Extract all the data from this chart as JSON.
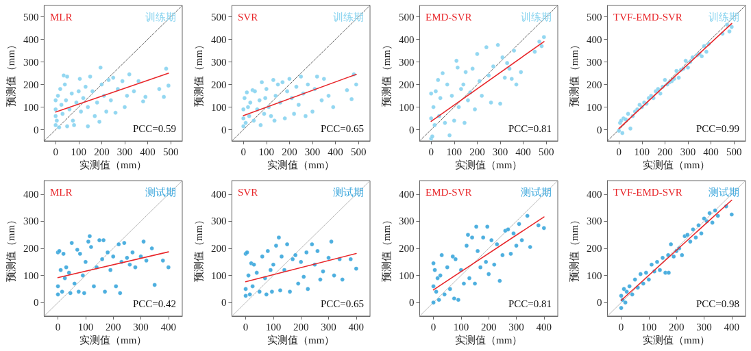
{
  "chart_data": [
    {
      "type": "scatter",
      "title": "MLR",
      "subtitle": "训练期",
      "annotations": [
        "PCC=0.59"
      ],
      "xlabel": "实测值（mm）",
      "ylabel": "预测值（mm）",
      "xlim": [
        -50,
        550
      ],
      "ylim": [
        -50,
        550
      ],
      "xticks": [
        0,
        100,
        200,
        300,
        400,
        500
      ],
      "yticks": [
        0,
        100,
        200,
        300,
        400,
        500
      ],
      "series": [
        {
          "marker": "circle",
          "color": "#87d3ef",
          "x": [
            0,
            0,
            0,
            0,
            5,
            10,
            15,
            20,
            25,
            30,
            35,
            40,
            45,
            50,
            50,
            60,
            70,
            75,
            80,
            90,
            100,
            105,
            110,
            120,
            130,
            140,
            140,
            150,
            160,
            170,
            180,
            190,
            195,
            200,
            210,
            220,
            230,
            240,
            250,
            260,
            270,
            290,
            300,
            310,
            320,
            340,
            360,
            380,
            390,
            450,
            470,
            480,
            490
          ],
          "values": [
            130,
            90,
            60,
            20,
            40,
            150,
            10,
            180,
            110,
            70,
            240,
            200,
            130,
            235,
            15,
            90,
            160,
            40,
            20,
            120,
            170,
            225,
            80,
            140,
            190,
            15,
            100,
            235,
            170,
            60,
            120,
            35,
            275,
            200,
            150,
            80,
            220,
            130,
            230,
            75,
            180,
            215,
            100,
            150,
            245,
            170,
            215,
            125,
            145,
            180,
            145,
            270,
            195
          ]
        },
        {
          "type": "line",
          "color": "#e8262a",
          "line_style": "solid",
          "x": [
            0,
            490
          ],
          "values": [
            78,
            250
          ]
        },
        {
          "type": "line",
          "color": "#555555",
          "line_style": "dashed",
          "x": [
            -50,
            550
          ],
          "values": [
            -50,
            550
          ]
        }
      ]
    },
    {
      "type": "scatter",
      "title": "SVR",
      "subtitle": "训练期",
      "annotations": [
        "PCC=0.65"
      ],
      "xlabel": "实测值（mm）",
      "ylabel": "预测值（mm）",
      "xlim": [
        -50,
        550
      ],
      "ylim": [
        -50,
        550
      ],
      "xticks": [
        0,
        100,
        200,
        300,
        400,
        500
      ],
      "yticks": [
        0,
        100,
        200,
        300,
        400,
        500
      ],
      "series": [
        {
          "marker": "circle",
          "color": "#87d3ef",
          "x": [
            0,
            0,
            0,
            5,
            10,
            15,
            20,
            25,
            30,
            40,
            45,
            50,
            60,
            70,
            75,
            80,
            90,
            95,
            100,
            110,
            120,
            130,
            135,
            140,
            150,
            160,
            170,
            180,
            190,
            200,
            210,
            220,
            230,
            240,
            250,
            260,
            270,
            280,
            300,
            310,
            320,
            340,
            350,
            370,
            390,
            450,
            470,
            480,
            490
          ],
          "values": [
            90,
            50,
            15,
            140,
            30,
            165,
            100,
            60,
            120,
            175,
            40,
            170,
            90,
            130,
            20,
            210,
            70,
            140,
            180,
            100,
            60,
            220,
            40,
            150,
            200,
            120,
            210,
            50,
            170,
            225,
            140,
            70,
            190,
            110,
            235,
            160,
            60,
            200,
            80,
            180,
            235,
            130,
            225,
            150,
            100,
            175,
            135,
            245,
            200
          ]
        },
        {
          "type": "line",
          "color": "#e8262a",
          "line_style": "solid",
          "x": [
            0,
            490
          ],
          "values": [
            62,
            245
          ]
        },
        {
          "type": "line",
          "color": "#555555",
          "line_style": "dashed",
          "x": [
            -50,
            550
          ],
          "values": [
            -50,
            550
          ]
        }
      ]
    },
    {
      "type": "scatter",
      "title": "EMD-SVR",
      "subtitle": "训练期",
      "annotations": [
        "PCC=0.81"
      ],
      "xlabel": "实测值（mm）",
      "ylabel": "预测值（mm）",
      "xlim": [
        -50,
        550
      ],
      "ylim": [
        -50,
        550
      ],
      "xticks": [
        0,
        100,
        200,
        300,
        400,
        500
      ],
      "yticks": [
        0,
        100,
        200,
        300,
        400,
        500
      ],
      "series": [
        {
          "marker": "circle",
          "color": "#87d3ef",
          "x": [
            0,
            0,
            0,
            5,
            10,
            15,
            20,
            30,
            35,
            40,
            50,
            60,
            70,
            80,
            90,
            100,
            110,
            115,
            120,
            130,
            140,
            145,
            150,
            160,
            170,
            180,
            190,
            200,
            210,
            220,
            240,
            250,
            260,
            270,
            290,
            300,
            310,
            320,
            330,
            340,
            350,
            360,
            370,
            390,
            450,
            470,
            480,
            490
          ],
          "values": [
            160,
            50,
            -40,
            -30,
            100,
            20,
            170,
            220,
            60,
            140,
            250,
            30,
            200,
            -25,
            150,
            40,
            305,
            275,
            100,
            180,
            200,
            30,
            255,
            130,
            165,
            270,
            90,
            335,
            215,
            150,
            365,
            240,
            120,
            280,
            375,
            115,
            320,
            230,
            295,
            270,
            225,
            350,
            200,
            255,
            345,
            390,
            370,
            410
          ]
        },
        {
          "type": "line",
          "color": "#e8262a",
          "line_style": "solid",
          "x": [
            0,
            490
          ],
          "values": [
            37,
            390
          ]
        },
        {
          "type": "line",
          "color": "#555555",
          "line_style": "dashed",
          "x": [
            -50,
            550
          ],
          "values": [
            -50,
            550
          ]
        }
      ]
    },
    {
      "type": "scatter",
      "title": "TVF-EMD-SVR",
      "subtitle": "训练期",
      "annotations": [
        "PCC=0.99"
      ],
      "xlabel": "实测值（mm）",
      "ylabel": "预测值（mm）",
      "xlim": [
        -50,
        550
      ],
      "ylim": [
        -50,
        550
      ],
      "xticks": [
        0,
        100,
        200,
        300,
        400,
        500
      ],
      "yticks": [
        0,
        100,
        200,
        300,
        400,
        500
      ],
      "series": [
        {
          "marker": "circle",
          "color": "#87d3ef",
          "x": [
            0,
            5,
            10,
            15,
            20,
            30,
            40,
            50,
            60,
            70,
            80,
            90,
            100,
            110,
            120,
            130,
            140,
            150,
            160,
            170,
            180,
            190,
            200,
            210,
            220,
            230,
            240,
            250,
            260,
            270,
            280,
            290,
            300,
            310,
            320,
            340,
            350,
            360,
            370,
            380,
            390,
            450,
            470,
            480,
            490
          ],
          "values": [
            -5,
            30,
            40,
            -15,
            50,
            45,
            70,
            5,
            60,
            80,
            90,
            110,
            100,
            120,
            115,
            140,
            150,
            140,
            170,
            180,
            160,
            190,
            220,
            200,
            210,
            215,
            225,
            260,
            230,
            265,
            270,
            305,
            275,
            300,
            320,
            330,
            335,
            325,
            370,
            345,
            380,
            425,
            465,
            435,
            455
          ]
        },
        {
          "type": "line",
          "color": "#e8262a",
          "line_style": "solid",
          "x": [
            0,
            490
          ],
          "values": [
            5,
            470
          ]
        },
        {
          "type": "line",
          "color": "#555555",
          "line_style": "dashed",
          "x": [
            -50,
            550
          ],
          "values": [
            -50,
            550
          ]
        }
      ]
    },
    {
      "type": "scatter",
      "title": "MLR",
      "subtitle": "测试期",
      "annotations": [
        "PCC=0.42"
      ],
      "xlabel": "实测值（mm）",
      "ylabel": "预测值（mm）",
      "xlim": [
        -50,
        450
      ],
      "ylim": [
        -50,
        450
      ],
      "xticks": [
        0,
        100,
        200,
        300,
        400
      ],
      "yticks": [
        0,
        100,
        200,
        300,
        400
      ],
      "series": [
        {
          "marker": "circle",
          "color": "#3aa6dc",
          "x": [
            0,
            0,
            0,
            5,
            10,
            15,
            20,
            25,
            30,
            40,
            45,
            50,
            60,
            70,
            75,
            80,
            90,
            95,
            100,
            110,
            115,
            120,
            130,
            140,
            150,
            160,
            165,
            170,
            180,
            190,
            200,
            210,
            220,
            225,
            230,
            240,
            250,
            260,
            270,
            280,
            300,
            310,
            320,
            340,
            350,
            380,
            400
          ],
          "values": [
            185,
            60,
            30,
            190,
            120,
            40,
            180,
            90,
            130,
            110,
            35,
            220,
            70,
            195,
            40,
            180,
            100,
            35,
            150,
            225,
            245,
            205,
            60,
            130,
            230,
            160,
            230,
            40,
            185,
            120,
            170,
            60,
            215,
            35,
            150,
            220,
            165,
            140,
            185,
            130,
            170,
            225,
            155,
            200,
            65,
            155,
            130
          ]
        },
        {
          "type": "line",
          "color": "#e8262a",
          "line_style": "solid",
          "x": [
            0,
            400
          ],
          "values": [
            92,
            187
          ]
        },
        {
          "type": "line",
          "color": "#aaaaaa",
          "line_style": "dotted",
          "x": [
            -50,
            450
          ],
          "values": [
            -50,
            450
          ]
        }
      ]
    },
    {
      "type": "scatter",
      "title": "SVR",
      "subtitle": "测试期",
      "annotations": [
        "PCC=0.65"
      ],
      "xlabel": "实测值（mm）",
      "ylabel": "预测值（mm）",
      "xlim": [
        -50,
        450
      ],
      "ylim": [
        -50,
        450
      ],
      "xticks": [
        0,
        100,
        200,
        300,
        400
      ],
      "yticks": [
        0,
        100,
        200,
        300,
        400
      ],
      "series": [
        {
          "marker": "circle",
          "color": "#3aa6dc",
          "x": [
            0,
            0,
            0,
            5,
            10,
            15,
            20,
            25,
            30,
            40,
            50,
            60,
            70,
            75,
            80,
            90,
            95,
            100,
            110,
            120,
            125,
            130,
            140,
            150,
            160,
            170,
            180,
            190,
            200,
            210,
            220,
            225,
            240,
            250,
            260,
            270,
            280,
            300,
            310,
            320,
            340,
            350,
            380,
            400
          ],
          "values": [
            180,
            50,
            25,
            185,
            100,
            30,
            145,
            60,
            140,
            110,
            40,
            170,
            90,
            30,
            190,
            120,
            40,
            140,
            210,
            240,
            45,
            170,
            120,
            215,
            40,
            160,
            175,
            70,
            150,
            95,
            185,
            50,
            215,
            140,
            190,
            85,
            115,
            165,
            225,
            100,
            160,
            85,
            160,
            125
          ]
        },
        {
          "type": "line",
          "color": "#e8262a",
          "line_style": "solid",
          "x": [
            0,
            400
          ],
          "values": [
            77,
            181
          ]
        },
        {
          "type": "line",
          "color": "#aaaaaa",
          "line_style": "dotted",
          "x": [
            -50,
            450
          ],
          "values": [
            -50,
            450
          ]
        }
      ]
    },
    {
      "type": "scatter",
      "title": "EMD-SVR",
      "subtitle": "测试期",
      "annotations": [
        "PCC=0.81"
      ],
      "xlabel": "实测值（mm）",
      "ylabel": "预测值（mm）",
      "xlim": [
        -50,
        450
      ],
      "ylim": [
        -50,
        450
      ],
      "xticks": [
        0,
        100,
        200,
        300,
        400
      ],
      "yticks": [
        0,
        100,
        200,
        300,
        400
      ],
      "series": [
        {
          "marker": "circle",
          "color": "#3aa6dc",
          "x": [
            0,
            0,
            0,
            5,
            10,
            15,
            20,
            25,
            30,
            40,
            50,
            60,
            70,
            75,
            80,
            90,
            100,
            110,
            120,
            125,
            130,
            140,
            150,
            155,
            160,
            170,
            180,
            190,
            195,
            200,
            210,
            220,
            230,
            240,
            250,
            260,
            270,
            280,
            290,
            300,
            310,
            320,
            340,
            350,
            380,
            400
          ],
          "values": [
            145,
            60,
            0,
            120,
            40,
            90,
            10,
            100,
            175,
            30,
            130,
            50,
            170,
            15,
            160,
            10,
            120,
            70,
            210,
            250,
            90,
            240,
            70,
            280,
            190,
            130,
            240,
            150,
            280,
            105,
            230,
            140,
            215,
            80,
            175,
            265,
            270,
            180,
            255,
            210,
            290,
            230,
            320,
            205,
            285,
            275
          ]
        },
        {
          "type": "line",
          "color": "#e8262a",
          "line_style": "solid",
          "x": [
            0,
            400
          ],
          "values": [
            47,
            316
          ]
        },
        {
          "type": "line",
          "color": "#aaaaaa",
          "line_style": "dotted",
          "x": [
            -50,
            450
          ],
          "values": [
            -50,
            450
          ]
        }
      ]
    },
    {
      "type": "scatter",
      "title": "TVF-EMD-SVR",
      "subtitle": "测试期",
      "annotations": [
        "PCC=0.98"
      ],
      "xlabel": "实测值（mm）",
      "ylabel": "预测值（mm）",
      "xlim": [
        -50,
        450
      ],
      "ylim": [
        -50,
        450
      ],
      "xticks": [
        0,
        100,
        200,
        300,
        400
      ],
      "yticks": [
        0,
        100,
        200,
        300,
        400
      ],
      "series": [
        {
          "marker": "circle",
          "color": "#3aa6dc",
          "x": [
            0,
            0,
            5,
            10,
            15,
            20,
            30,
            40,
            50,
            60,
            70,
            80,
            90,
            100,
            110,
            120,
            130,
            140,
            150,
            160,
            172,
            170,
            180,
            190,
            200,
            210,
            220,
            230,
            240,
            250,
            260,
            270,
            280,
            290,
            300,
            310,
            320,
            330,
            340,
            350,
            380,
            400
          ],
          "values": [
            -20,
            25,
            10,
            50,
            0,
            40,
            60,
            30,
            85,
            55,
            105,
            70,
            110,
            85,
            140,
            115,
            150,
            120,
            165,
            110,
            110,
            175,
            215,
            170,
            190,
            200,
            175,
            245,
            250,
            225,
            270,
            240,
            285,
            255,
            310,
            300,
            330,
            295,
            340,
            320,
            355,
            325
          ]
        },
        {
          "type": "line",
          "color": "#e8262a",
          "line_style": "solid",
          "x": [
            0,
            400
          ],
          "values": [
            8,
            378
          ]
        },
        {
          "type": "line",
          "color": "#aaaaaa",
          "line_style": "dotted",
          "x": [
            -50,
            450
          ],
          "values": [
            -50,
            450
          ]
        }
      ]
    }
  ]
}
